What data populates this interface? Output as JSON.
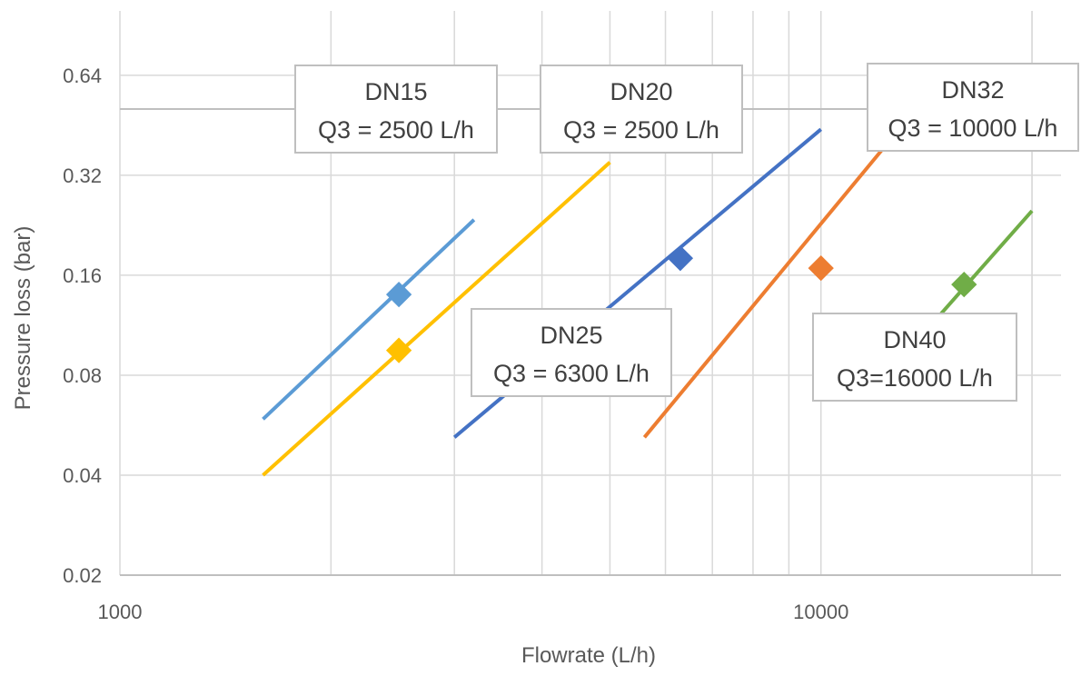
{
  "chart_data": {
    "type": "line",
    "x_scale": "log",
    "y_scale": "log",
    "xlabel": "Flowrate (L/h)",
    "ylabel": "Pressure loss (bar)",
    "xlim": [
      1000,
      22000
    ],
    "ylim": [
      0.02,
      1.0
    ],
    "x_ticks": [
      "1000",
      "10000"
    ],
    "y_ticks": [
      "0.02",
      "0.04",
      "0.08",
      "0.16",
      "0.32",
      "0.64"
    ],
    "grid": true,
    "series": [
      {
        "name": "DN15",
        "color": "#5B9BD5",
        "line": [
          [
            1600,
            0.059
          ],
          [
            3200,
            0.235
          ]
        ],
        "marker": [
          2500,
          0.14
        ]
      },
      {
        "name": "DN20",
        "color": "#FFC000",
        "line": [
          [
            1600,
            0.04
          ],
          [
            5000,
            0.35
          ]
        ],
        "marker": [
          2500,
          0.095
        ]
      },
      {
        "name": "DN25",
        "color": "#4472C4",
        "line": [
          [
            3000,
            0.052
          ],
          [
            10000,
            0.44
          ]
        ],
        "marker": [
          6300,
          0.18
        ]
      },
      {
        "name": "DN32",
        "color": "#ED7D31",
        "line": [
          [
            5600,
            0.052
          ],
          [
            12200,
            0.38
          ]
        ],
        "marker": [
          10000,
          0.168
        ]
      },
      {
        "name": "DN40",
        "color": "#70AD47",
        "line": [
          [
            14500,
            0.116
          ],
          [
            20000,
            0.25
          ]
        ],
        "marker": [
          16000,
          0.15
        ]
      }
    ],
    "callouts": [
      {
        "series": "DN15",
        "line1": "DN15",
        "line2": "Q3 = 2500 L/h"
      },
      {
        "series": "DN20",
        "line1": "DN20",
        "line2": "Q3 = 2500 L/h"
      },
      {
        "series": "DN25",
        "line1": "DN25",
        "line2": "Q3 = 6300 L/h"
      },
      {
        "series": "DN32",
        "line1": "DN32",
        "line2": "Q3 = 10000 L/h"
      },
      {
        "series": "DN40",
        "line1": "DN40",
        "line2": "Q3=16000 L/h"
      }
    ]
  }
}
